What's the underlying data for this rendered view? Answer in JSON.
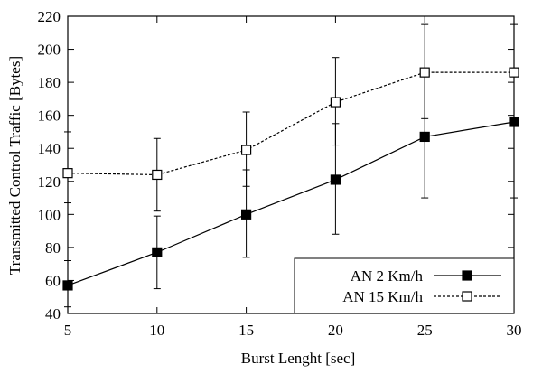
{
  "chart_data": {
    "type": "line",
    "title": "",
    "xlabel": "Burst Lenght [sec]",
    "ylabel": "Transmitted Control Traffic [Bytes]",
    "x": [
      5,
      10,
      15,
      20,
      25,
      30
    ],
    "xlim": [
      5,
      30
    ],
    "ylim": [
      40,
      220
    ],
    "xticks": [
      5,
      10,
      15,
      20,
      25,
      30
    ],
    "yticks": [
      40,
      60,
      80,
      100,
      120,
      140,
      160,
      180,
      200,
      220
    ],
    "grid": false,
    "legend_position": "bottom-right",
    "series": [
      {
        "name": "AN 2 Km/h",
        "values": [
          57,
          77,
          100,
          121,
          147,
          156
        ],
        "err_low": [
          44,
          55,
          74,
          88,
          110,
          110
        ],
        "err_high": [
          72,
          99,
          127,
          155,
          186,
          186
        ],
        "marker": "filled-square",
        "line": "solid",
        "color": "#000000"
      },
      {
        "name": "AN 15 Km/h",
        "values": [
          125,
          124,
          139,
          168,
          186,
          186
        ],
        "err_low": [
          107,
          102,
          117,
          142,
          158,
          158
        ],
        "err_high": [
          150,
          146,
          162,
          195,
          215,
          215
        ],
        "marker": "open-square",
        "line": "dashed",
        "color": "#000000"
      }
    ]
  }
}
